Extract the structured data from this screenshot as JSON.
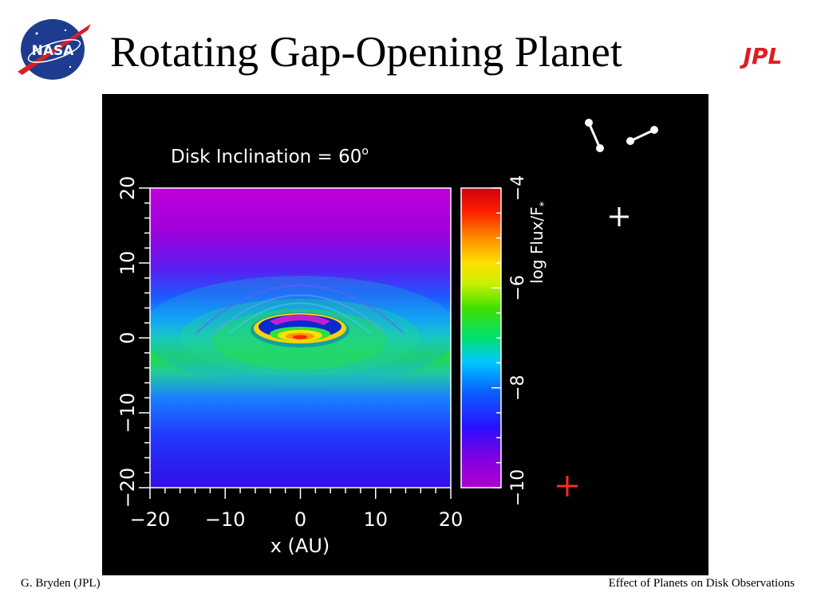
{
  "slide": {
    "title": "Rotating Gap-Opening Planet",
    "footer_left": "G. Bryden (JPL)",
    "footer_right": "Effect of Planets on Disk Observations",
    "logos": {
      "left": "NASA",
      "right": "JPL"
    }
  },
  "chart_data": {
    "type": "heatmap",
    "title": "Disk Inclination = 60",
    "title_superscript": "o",
    "xlabel": "x (AU)",
    "ylabel": "",
    "xlim": [
      -20,
      20
    ],
    "ylim": [
      -20,
      20
    ],
    "x_ticks": [
      "−20",
      "−10",
      "0",
      "10",
      "20"
    ],
    "y_ticks": [
      "−20",
      "−10",
      "0",
      "10",
      "20"
    ],
    "colorbar": {
      "label": "log Flux/F",
      "label_subscript": "*",
      "range": [
        -10,
        -4
      ],
      "ticks": [
        "−10",
        "−8",
        "−6",
        "−4"
      ]
    },
    "colors": {
      "background": "#000000",
      "planet_marker": "#ff2a2a",
      "star_marker": "#ffffff"
    }
  }
}
